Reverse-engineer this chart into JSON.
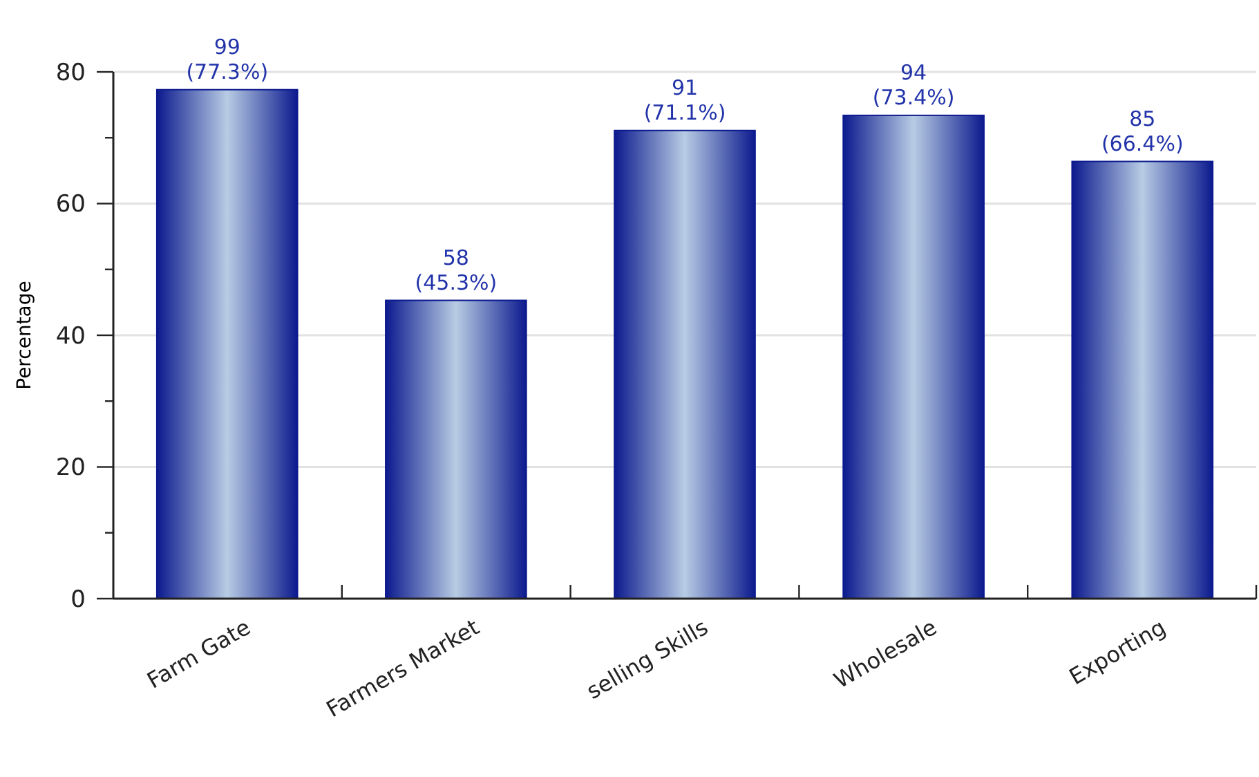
{
  "chart_data": {
    "type": "bar",
    "ylabel": "Percentage",
    "categories": [
      "Farm Gate",
      "Farmers Market",
      "selling Skills",
      "Wholesale",
      "Exporting"
    ],
    "values": [
      77.3,
      45.3,
      71.1,
      73.4,
      66.4
    ],
    "value_labels": [
      "99\n(77.3%)",
      "58\n(45.3%)",
      "91\n(71.1%)",
      "94\n(73.4%)",
      "85\n(66.4%)"
    ],
    "color": "#0c1a8e",
    "ylim": [
      0,
      80
    ],
    "yticks": [
      0,
      {
        "value": 10,
        "label": null
      },
      20,
      {
        "value": 30,
        "label": null
      },
      40,
      {
        "value": 50,
        "label": null
      },
      60,
      {
        "value": 70,
        "label": null
      },
      80
    ],
    "grid": "y"
  }
}
